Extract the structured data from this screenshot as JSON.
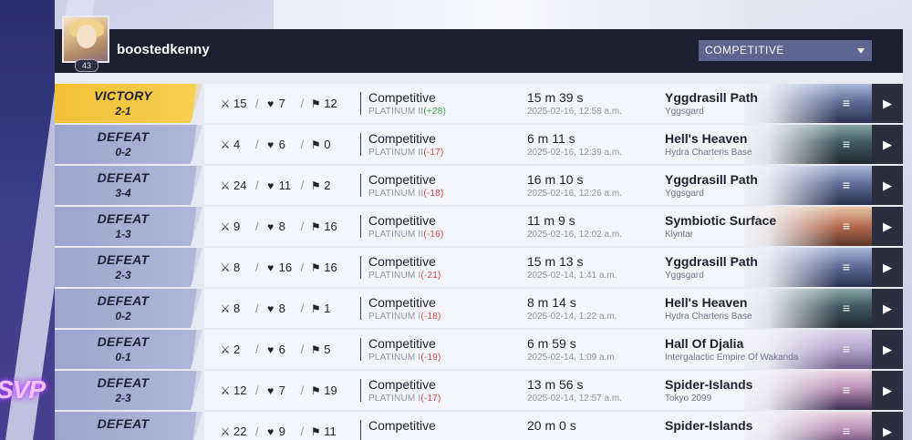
{
  "profile": {
    "username": "boostedkenny",
    "level": "43"
  },
  "mode_select": {
    "value": "COMPETITIVE"
  },
  "brand": {
    "logo_text": "SVP"
  },
  "colors": {
    "victory": "#f2c035",
    "defeat": "#9aa6cd",
    "loss": "#d94545",
    "gain": "#3aa94a"
  },
  "matches": [
    {
      "result": "VICTORY",
      "score": "2-1",
      "kills": "15",
      "deaths": "7",
      "assists": "12",
      "mode": "Competitive",
      "rank": "PLATINUM II",
      "delta": "(+28)",
      "delta_sign": "pos",
      "duration": "15 m 39 s",
      "date": "2025-02-16, 12:58 a.m.",
      "map": "Yggdrasill Path",
      "region": "Yggsgard",
      "theme": "ygg"
    },
    {
      "result": "DEFEAT",
      "score": "0-2",
      "kills": "4",
      "deaths": "6",
      "assists": "0",
      "mode": "Competitive",
      "rank": "PLATINUM II",
      "delta": "(-17)",
      "delta_sign": "neg",
      "duration": "6 m 11 s",
      "date": "2025-02-16, 12:39 a.m.",
      "map": "Hell's Heaven",
      "region": "Hydra Charteris Base",
      "theme": "hell"
    },
    {
      "result": "DEFEAT",
      "score": "3-4",
      "kills": "24",
      "deaths": "11",
      "assists": "2",
      "mode": "Competitive",
      "rank": "PLATINUM II",
      "delta": "(-18)",
      "delta_sign": "neg",
      "duration": "16 m 10 s",
      "date": "2025-02-16, 12:26 a.m.",
      "map": "Yggdrasill Path",
      "region": "Yggsgard",
      "theme": "ygg"
    },
    {
      "result": "DEFEAT",
      "score": "1-3",
      "kills": "9",
      "deaths": "8",
      "assists": "16",
      "mode": "Competitive",
      "rank": "PLATINUM II",
      "delta": "(-16)",
      "delta_sign": "neg",
      "duration": "11 m 9 s",
      "date": "2025-02-16, 12:02 a.m.",
      "map": "Symbiotic Surface",
      "region": "Klyntar",
      "theme": "sym"
    },
    {
      "result": "DEFEAT",
      "score": "2-3",
      "kills": "8",
      "deaths": "16",
      "assists": "16",
      "mode": "Competitive",
      "rank": "PLATINUM I",
      "delta": "(-21)",
      "delta_sign": "neg",
      "duration": "15 m 13 s",
      "date": "2025-02-14, 1:41 a.m.",
      "map": "Yggdrasill Path",
      "region": "Yggsgard",
      "theme": "ygg"
    },
    {
      "result": "DEFEAT",
      "score": "0-2",
      "kills": "8",
      "deaths": "8",
      "assists": "1",
      "mode": "Competitive",
      "rank": "PLATINUM I",
      "delta": "(-18)",
      "delta_sign": "neg",
      "duration": "8 m 14 s",
      "date": "2025-02-14, 1:22 a.m.",
      "map": "Hell's Heaven",
      "region": "Hydra Charteris Base",
      "theme": "hell"
    },
    {
      "result": "DEFEAT",
      "score": "0-1",
      "kills": "2",
      "deaths": "6",
      "assists": "5",
      "mode": "Competitive",
      "rank": "PLATINUM I",
      "delta": "(-19)",
      "delta_sign": "neg",
      "duration": "6 m 59 s",
      "date": "2025-02-14, 1:09 a.m.",
      "map": "Hall Of Djalia",
      "region": "Intergalactic Empire Of Wakanda",
      "theme": "djalia"
    },
    {
      "result": "DEFEAT",
      "score": "2-3",
      "kills": "12",
      "deaths": "7",
      "assists": "19",
      "mode": "Competitive",
      "rank": "PLATINUM I",
      "delta": "(-17)",
      "delta_sign": "neg",
      "duration": "13 m 56 s",
      "date": "2025-02-14, 12:57 a.m.",
      "map": "Spider-Islands",
      "region": "Tokyo 2099",
      "theme": "spider"
    },
    {
      "result": "DEFEAT",
      "score": "",
      "kills": "22",
      "deaths": "9",
      "assists": "11",
      "mode": "Competitive",
      "rank": "",
      "delta": "",
      "delta_sign": "neg",
      "duration": "20 m 0 s",
      "date": "",
      "map": "Spider-Islands",
      "region": "",
      "theme": "spider"
    }
  ]
}
